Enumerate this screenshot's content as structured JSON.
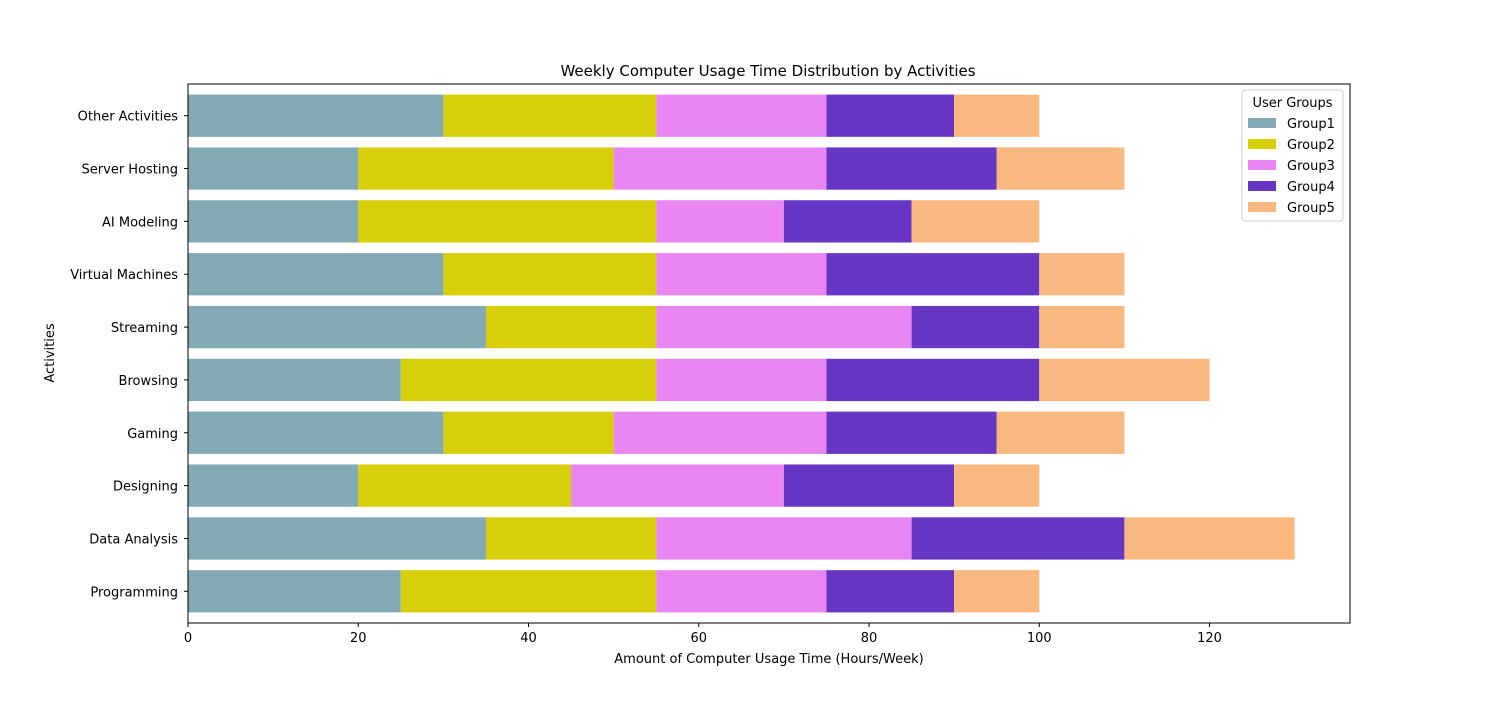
{
  "chart_data": {
    "type": "bar",
    "orientation": "horizontal",
    "stacked": true,
    "title": "Weekly Computer Usage Time Distribution by Activities",
    "xlabel": "Amount of Computer Usage Time (Hours/Week)",
    "ylabel": "Activities",
    "xlim": [
      0,
      136.5
    ],
    "xticks": [
      0,
      20,
      40,
      60,
      80,
      100,
      120
    ],
    "grid": false,
    "legend": {
      "title": "User Groups",
      "placement": "top-right"
    },
    "categories": [
      "Programming",
      "Data Analysis",
      "Designing",
      "Gaming",
      "Browsing",
      "Streaming",
      "Virtual Machines",
      "AI Modeling",
      "Server Hosting",
      "Other Activities"
    ],
    "series": [
      {
        "name": "Group1",
        "color": "#83a9b5",
        "values": [
          25,
          35,
          20,
          30,
          25,
          35,
          30,
          20,
          20,
          30
        ]
      },
      {
        "name": "Group2",
        "color": "#d6cf0a",
        "values": [
          30,
          20,
          25,
          20,
          30,
          20,
          25,
          35,
          30,
          25
        ]
      },
      {
        "name": "Group3",
        "color": "#e986f2",
        "values": [
          20,
          30,
          25,
          25,
          20,
          30,
          20,
          15,
          25,
          20
        ]
      },
      {
        "name": "Group4",
        "color": "#6836c4",
        "values": [
          15,
          25,
          20,
          20,
          25,
          15,
          25,
          15,
          20,
          15
        ]
      },
      {
        "name": "Group5",
        "color": "#f9b880",
        "values": [
          10,
          20,
          10,
          15,
          20,
          10,
          10,
          15,
          15,
          10
        ]
      }
    ]
  }
}
